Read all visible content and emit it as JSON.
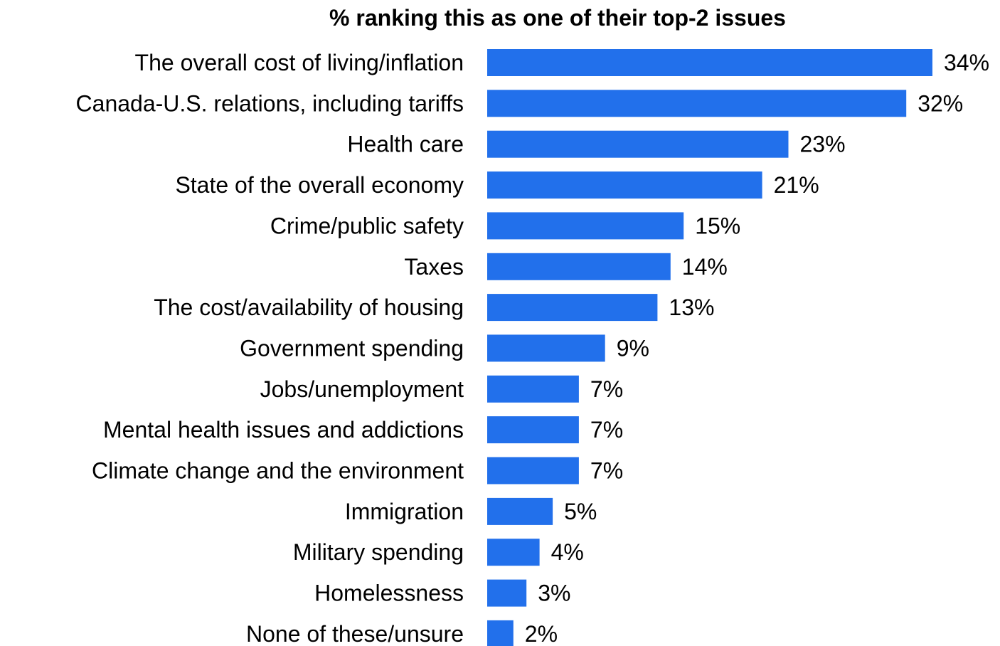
{
  "chart_data": {
    "type": "bar",
    "orientation": "horizontal",
    "title": "% ranking this as one of their top-2 issues",
    "categories": [
      "The overall cost of living/inflation",
      "Canada-U.S. relations, including tariffs",
      "Health care",
      "State of the overall economy",
      "Crime/public safety",
      "Taxes",
      "The cost/availability of housing",
      "Government spending",
      "Jobs/unemployment",
      "Mental health issues and addictions",
      "Climate change and the environment",
      "Immigration",
      "Military spending",
      "Homelessness",
      "None of these/unsure"
    ],
    "values": [
      34,
      32,
      23,
      21,
      15,
      14,
      13,
      9,
      7,
      7,
      7,
      5,
      4,
      3,
      2
    ],
    "data_labels": [
      "34%",
      "32%",
      "23%",
      "21%",
      "15%",
      "14%",
      "13%",
      "9%",
      "7%",
      "7%",
      "7%",
      "5%",
      "4%",
      "3%",
      "2%"
    ],
    "xlim": [
      0,
      34
    ],
    "bar_color": "#2270eb",
    "grid": false,
    "axes_visible": false,
    "legend": "none"
  }
}
